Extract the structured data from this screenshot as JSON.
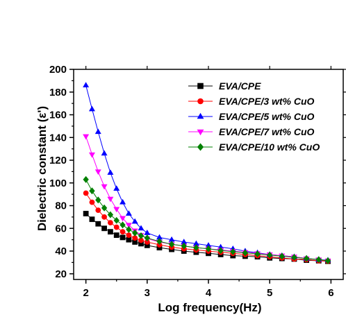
{
  "chart_data": {
    "type": "scatter",
    "title": "",
    "xlabel": "Log frequency(Hz)",
    "ylabel": "Dielectric constant (ε')",
    "xlim": [
      1.8,
      6.2
    ],
    "ylim": [
      15,
      200
    ],
    "x_ticks": [
      "2",
      "3",
      "4",
      "5",
      "6"
    ],
    "y_ticks": [
      "20",
      "40",
      "60",
      "80",
      "100",
      "120",
      "140",
      "160",
      "180",
      "200"
    ],
    "grid": false,
    "legend_position": "top-right",
    "series": [
      {
        "name": "EVA/CPE",
        "marker": "square",
        "color": "#000000",
        "x": [
          2.0,
          2.1,
          2.2,
          2.3,
          2.4,
          2.5,
          2.6,
          2.7,
          2.8,
          2.9,
          3.0,
          3.2,
          3.4,
          3.6,
          3.8,
          4.0,
          4.2,
          4.4,
          4.6,
          4.8,
          5.0,
          5.2,
          5.4,
          5.6,
          5.8,
          5.95
        ],
        "y": [
          73,
          68,
          64,
          60,
          57,
          54,
          52,
          50,
          48,
          46.5,
          45,
          43,
          41.5,
          40,
          39,
          38,
          37,
          36,
          35.5,
          35,
          34,
          33.5,
          33,
          32,
          31.5,
          31
        ]
      },
      {
        "name": "EVA/CPE/3 wt% CuO",
        "marker": "circle",
        "color": "#ff0000",
        "x": [
          2.0,
          2.1,
          2.2,
          2.3,
          2.4,
          2.5,
          2.6,
          2.7,
          2.8,
          2.9,
          3.0,
          3.2,
          3.4,
          3.6,
          3.8,
          4.0,
          4.2,
          4.4,
          4.6,
          4.8,
          5.0,
          5.2,
          5.4,
          5.6,
          5.8,
          5.95
        ],
        "y": [
          91,
          83,
          76,
          70,
          65,
          61,
          57,
          54,
          51.5,
          49.5,
          48,
          45.5,
          43.5,
          42,
          41,
          40,
          39,
          38,
          37,
          36,
          35,
          34,
          33,
          32.5,
          31.5,
          31
        ]
      },
      {
        "name": "EVA/CPE/5 wt% CuO",
        "marker": "triangle-up",
        "color": "#0000ff",
        "x": [
          2.0,
          2.1,
          2.2,
          2.3,
          2.4,
          2.5,
          2.6,
          2.7,
          2.8,
          2.9,
          3.0,
          3.2,
          3.4,
          3.6,
          3.8,
          4.0,
          4.2,
          4.4,
          4.6,
          4.8,
          5.0,
          5.2,
          5.4,
          5.6,
          5.8,
          5.95
        ],
        "y": [
          186,
          165,
          145,
          126,
          109,
          95,
          83,
          73,
          66,
          60,
          56,
          52,
          50,
          48,
          46.5,
          45,
          43.5,
          42,
          40,
          38.5,
          37,
          36,
          35,
          33.5,
          32.5,
          32
        ]
      },
      {
        "name": "EVA/CPE/7 wt% CuO",
        "marker": "triangle-down",
        "color": "#ff00ff",
        "x": [
          2.0,
          2.1,
          2.2,
          2.3,
          2.4,
          2.5,
          2.6,
          2.7,
          2.8,
          2.9,
          3.0,
          3.2,
          3.4,
          3.6,
          3.8,
          4.0,
          4.2,
          4.4,
          4.6,
          4.8,
          5.0,
          5.2,
          5.4,
          5.6,
          5.8,
          5.95
        ],
        "y": [
          141,
          125,
          110,
          97,
          86,
          77,
          69,
          63,
          58,
          54,
          51,
          48,
          46,
          44.5,
          43,
          42,
          41,
          40,
          39,
          38,
          37,
          36,
          35,
          33.5,
          32.5,
          31.5
        ]
      },
      {
        "name": "EVA/CPE/10 wt% CuO",
        "marker": "diamond",
        "color": "#008000",
        "x": [
          2.0,
          2.1,
          2.2,
          2.3,
          2.4,
          2.5,
          2.6,
          2.7,
          2.8,
          2.9,
          3.0,
          3.2,
          3.4,
          3.6,
          3.8,
          4.0,
          4.2,
          4.4,
          4.6,
          4.8,
          5.0,
          5.2,
          5.4,
          5.6,
          5.8,
          5.95
        ],
        "y": [
          103,
          93,
          85,
          78,
          72,
          67,
          63,
          59,
          56,
          53.5,
          51.5,
          48.5,
          46,
          44.5,
          43,
          42,
          40.5,
          39.5,
          38.5,
          37.5,
          36.5,
          35.5,
          34.5,
          33.5,
          32.5,
          31.5
        ]
      }
    ]
  }
}
